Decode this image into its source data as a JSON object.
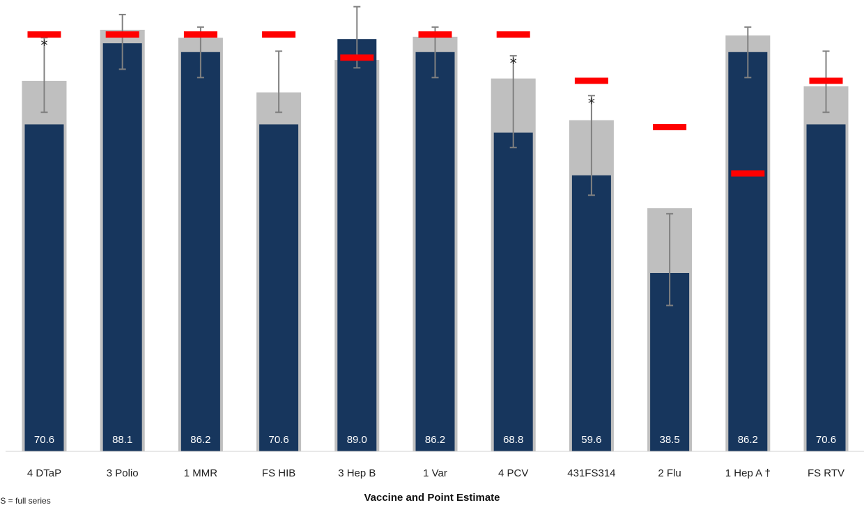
{
  "chart_data": {
    "type": "bar",
    "categories": [
      "4 DTaP",
      "3 Polio",
      "1 MMR",
      "FS HIB",
      "3 Hep B",
      "1 Var",
      "4 PCV",
      "431FS314",
      "2 Flu",
      "1 Hep A †",
      "FS RTV"
    ],
    "series": [
      {
        "values": [
          70.6,
          88.1,
          86.2,
          70.6,
          89.0,
          86.2,
          68.8,
          59.6,
          38.5,
          86.2,
          70.6
        ],
        "data_labels": [
          "70.6",
          "88.1",
          "86.2",
          "70.6",
          "89.0",
          "86.2",
          "68.8",
          "59.6",
          "38.5",
          "86.2",
          "70.6"
        ]
      },
      {
        "values": [
          80.0,
          91.0,
          89.3,
          77.5,
          84.5,
          89.5,
          80.5,
          71.5,
          52.5,
          89.8,
          78.8
        ]
      }
    ],
    "error_bars": [
      [
        73.2,
        89.3
      ],
      [
        82.5,
        94.3
      ],
      [
        80.7,
        91.6
      ],
      [
        73.2,
        86.4
      ],
      [
        82.8,
        96.0
      ],
      [
        80.7,
        91.6
      ],
      [
        65.6,
        85.4
      ],
      [
        55.3,
        76.8
      ],
      [
        31.5,
        51.3
      ],
      [
        80.7,
        91.6
      ],
      [
        73.2,
        86.4
      ]
    ],
    "targets": [
      90.0,
      90.0,
      90.0,
      90.0,
      85.0,
      90.0,
      90.0,
      80.0,
      70.0,
      60.0,
      80.0
    ],
    "significant": [
      true,
      false,
      false,
      false,
      false,
      false,
      true,
      true,
      false,
      false,
      false
    ],
    "significance_marker": "*",
    "xlabel": "Vaccine and Point Estimate",
    "ylabel": "",
    "ylim": [
      0,
      95
    ],
    "grid": false,
    "footnote": "FS = full series",
    "colors": {
      "primary": "#17365d",
      "secondary": "#bfbfbf",
      "error_bar": "#808080",
      "target": "#ff0000",
      "data_label": "#ffffff"
    }
  }
}
